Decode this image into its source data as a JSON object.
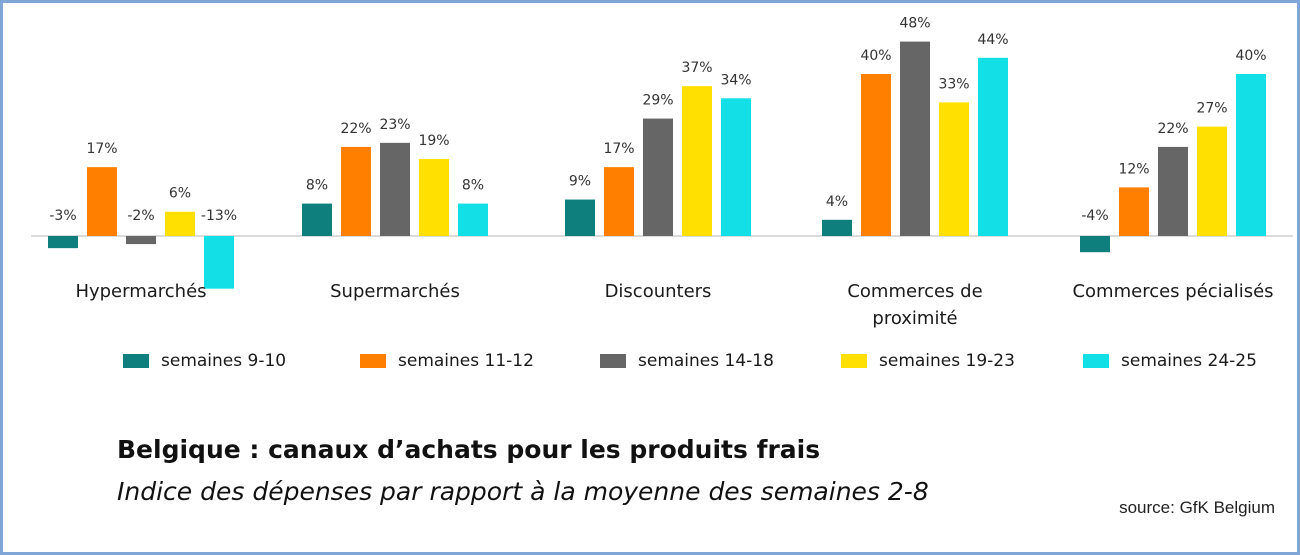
{
  "chart_data": {
    "type": "bar",
    "title": "Belgique : canaux d’achats pour les produits frais",
    "subtitle": "Indice des dépenses par rapport à la moyenne des semaines 2-8",
    "source": "source: GfK Belgium",
    "categories": [
      [
        "Hypermarchés"
      ],
      [
        "Supermarchés"
      ],
      [
        "Discounters"
      ],
      [
        "Commerces de",
        "proximité"
      ],
      [
        "Commerces pécialisés"
      ]
    ],
    "series": [
      {
        "name": "semaines 9-10",
        "color": "#0f7f7d",
        "values": [
          -3,
          8,
          9,
          4,
          -4
        ]
      },
      {
        "name": "semaines 11-12",
        "color": "#ff7f00",
        "values": [
          17,
          22,
          17,
          40,
          12
        ]
      },
      {
        "name": "semaines 14-18",
        "color": "#666666",
        "values": [
          -2,
          23,
          29,
          48,
          22
        ]
      },
      {
        "name": "semaines 19-23",
        "color": "#ffe000",
        "values": [
          6,
          19,
          37,
          33,
          27
        ]
      },
      {
        "name": "semaines 24-25",
        "color": "#12e0e6",
        "values": [
          -13,
          8,
          34,
          44,
          40
        ]
      }
    ],
    "value_suffix": "%",
    "ylim": [
      -14,
      50
    ],
    "legend": "bottom",
    "grid": false
  }
}
